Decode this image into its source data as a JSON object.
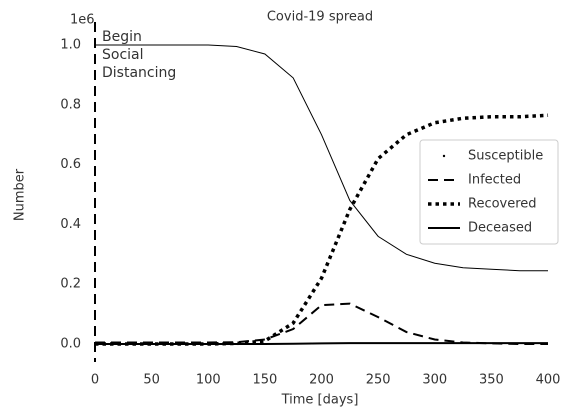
{
  "chart_data": {
    "type": "line",
    "title": "Covid-19 spread",
    "x_label": "Time [days]",
    "y_label": "Number",
    "y_offset_label": "1e6",
    "x": [
      0,
      25,
      50,
      75,
      100,
      125,
      150,
      175,
      200,
      225,
      250,
      275,
      300,
      325,
      350,
      375,
      400
    ],
    "series": [
      {
        "name": "Susceptible",
        "color": "#000000",
        "linestyle": "solid",
        "linewidth": 1,
        "values": [
          1.0,
          1.0,
          1.0,
          1.0,
          1.0,
          0.995,
          0.97,
          0.89,
          0.7,
          0.48,
          0.36,
          0.3,
          0.27,
          0.255,
          0.25,
          0.245,
          0.245
        ]
      },
      {
        "name": "Infected",
        "color": "#000000",
        "linestyle": "dashed",
        "linewidth": 2,
        "values": [
          0.005,
          0.005,
          0.005,
          0.005,
          0.005,
          0.006,
          0.015,
          0.05,
          0.13,
          0.135,
          0.09,
          0.04,
          0.015,
          0.005,
          0.002,
          0,
          0
        ]
      },
      {
        "name": "Recovered",
        "color": "#000000",
        "linestyle": "dotted",
        "linewidth": 3.5,
        "values": [
          0,
          0,
          0,
          0,
          0,
          0.002,
          0.01,
          0.07,
          0.22,
          0.45,
          0.62,
          0.7,
          0.74,
          0.755,
          0.76,
          0.76,
          0.765
        ]
      },
      {
        "name": "Deceased",
        "color": "#000000",
        "linestyle": "solid",
        "linewidth": 2,
        "values": [
          0,
          0,
          0,
          0,
          0,
          0,
          0,
          0.001,
          0.002,
          0.003,
          0.003,
          0.003,
          0.003,
          0.003,
          0.003,
          0.003,
          0.003
        ]
      }
    ],
    "vline": {
      "x": 0,
      "label_lines": [
        "Begin",
        "Social",
        "Distancing"
      ]
    },
    "xlim": [
      0,
      400
    ],
    "xticks": [
      0,
      50,
      100,
      150,
      200,
      250,
      300,
      350,
      400
    ],
    "ylim": [
      0,
      1.0
    ],
    "yticks": [
      {
        "value": 0,
        "label": "0.0"
      },
      0.2,
      0.4,
      0.6,
      0.8,
      {
        "value": 1,
        "label": "1.0"
      }
    ],
    "grid": false,
    "legend": "center right"
  }
}
